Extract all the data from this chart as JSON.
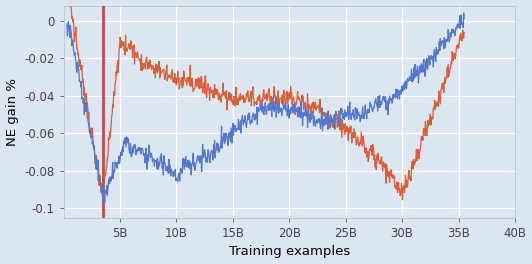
{
  "title": "",
  "xlabel": "Training examples",
  "ylabel": "NE gain %",
  "xlim": [
    0,
    40000000000
  ],
  "ylim": [
    -0.105,
    0.008
  ],
  "yticks": [
    0,
    -0.02,
    -0.04,
    -0.06,
    -0.08,
    -0.1
  ],
  "xticks": [
    5000000000,
    10000000000,
    15000000000,
    20000000000,
    25000000000,
    30000000000,
    35000000000,
    40000000000
  ],
  "xtick_labels": [
    "5B",
    "10B",
    "15B",
    "20B",
    "25B",
    "30B",
    "35B",
    "40B"
  ],
  "background_color": "#dce6f1",
  "grid_color": "#ffffff",
  "line_red": "#d95f3b",
  "line_blue": "#5577cc",
  "vline_x": 3500000000,
  "vline_color": "#cc3333",
  "seed": 7
}
